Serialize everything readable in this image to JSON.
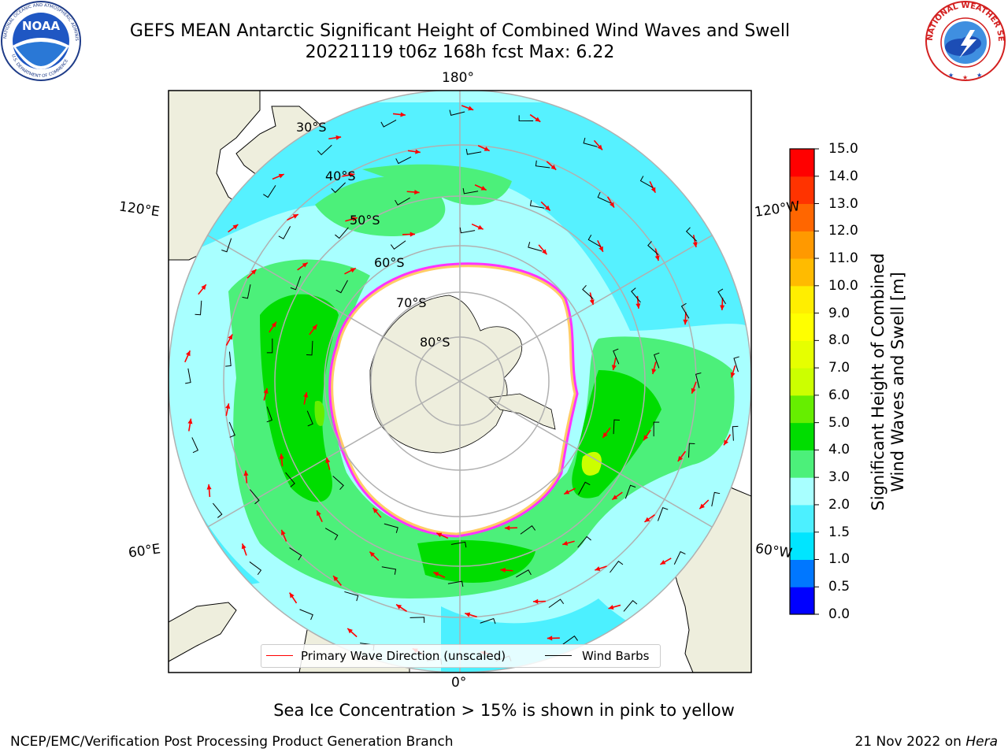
{
  "header": {
    "title": "GEFS MEAN Antarctic Significant Height of Combined Wind Waves and Swell",
    "subtitle": "20221119 t06z 168h fcst   Max: 6.22"
  },
  "logos": {
    "left": "noaa-logo",
    "left_text": "NOAA",
    "left_ring_text": "NATIONAL OCEANIC AND ATMOSPHERIC ADMINISTRATION",
    "left_bottom_text": "U.S. DEPARTMENT OF COMMERCE",
    "right": "nws-logo",
    "right_ring_text": "NATIONAL WEATHER SERVICE"
  },
  "map": {
    "projection": "south-polar-stereographic",
    "lon_labels": {
      "top": "180°",
      "bottom": "0°",
      "upper_left": "120°E",
      "upper_right": "120°W",
      "lower_left": "60°E",
      "lower_right": "60°W"
    },
    "lat_labels": [
      "30°S",
      "40°S",
      "50°S",
      "60°S",
      "70°S",
      "80°S"
    ],
    "sea_ice_colors": [
      "#ff33ff",
      "#ff66cc",
      "#ffcc66",
      "#ffaa33"
    ],
    "land_color": "#eeeedd",
    "wave_arrow_color": "#ff0000",
    "wind_barb_color": "#000000"
  },
  "legend": {
    "primary_wave_label": "Primary Wave Direction (unscaled)",
    "wind_barbs_label": "Wind Barbs",
    "primary_wave_color": "#ff0000",
    "wind_barbs_color": "#000000"
  },
  "colorbar": {
    "label_line1": "Significant Height of Combined",
    "label_line2": "Wind Waves and Swell [m]",
    "ticks": [
      "15.0",
      "14.0",
      "13.0",
      "12.0",
      "11.0",
      "10.0",
      "9.0",
      "8.0",
      "7.0",
      "6.0",
      "5.0",
      "4.0",
      "3.0",
      "2.0",
      "1.5",
      "1.0",
      "0.5",
      "0.0"
    ],
    "bins": [
      {
        "min": 0.0,
        "max": 0.5,
        "color": "#0000ff"
      },
      {
        "min": 0.5,
        "max": 1.0,
        "color": "#0077ff"
      },
      {
        "min": 1.0,
        "max": 1.5,
        "color": "#00e5ff"
      },
      {
        "min": 1.5,
        "max": 2.0,
        "color": "#4cf0ff"
      },
      {
        "min": 2.0,
        "max": 3.0,
        "color": "#a8ffff"
      },
      {
        "min": 3.0,
        "max": 4.0,
        "color": "#4cf07a"
      },
      {
        "min": 4.0,
        "max": 5.0,
        "color": "#00dd00"
      },
      {
        "min": 5.0,
        "max": 6.0,
        "color": "#66ee00"
      },
      {
        "min": 6.0,
        "max": 7.0,
        "color": "#ccff00"
      },
      {
        "min": 7.0,
        "max": 8.0,
        "color": "#e6ff00"
      },
      {
        "min": 8.0,
        "max": 9.0,
        "color": "#ffff00"
      },
      {
        "min": 9.0,
        "max": 10.0,
        "color": "#ffee00"
      },
      {
        "min": 10.0,
        "max": 11.0,
        "color": "#ffbb00"
      },
      {
        "min": 11.0,
        "max": 12.0,
        "color": "#ff9900"
      },
      {
        "min": 12.0,
        "max": 13.0,
        "color": "#ff6600"
      },
      {
        "min": 13.0,
        "max": 14.0,
        "color": "#ff3300"
      },
      {
        "min": 14.0,
        "max": 15.0,
        "color": "#ff0000"
      }
    ]
  },
  "notes": {
    "sea_ice": "Sea Ice Concentration > 15% is shown in pink to yellow"
  },
  "footer": {
    "left": "NCEP/EMC/Verification Post Processing Product Generation Branch",
    "right_date": "21 Nov 2022 on ",
    "right_host": "Hera"
  }
}
